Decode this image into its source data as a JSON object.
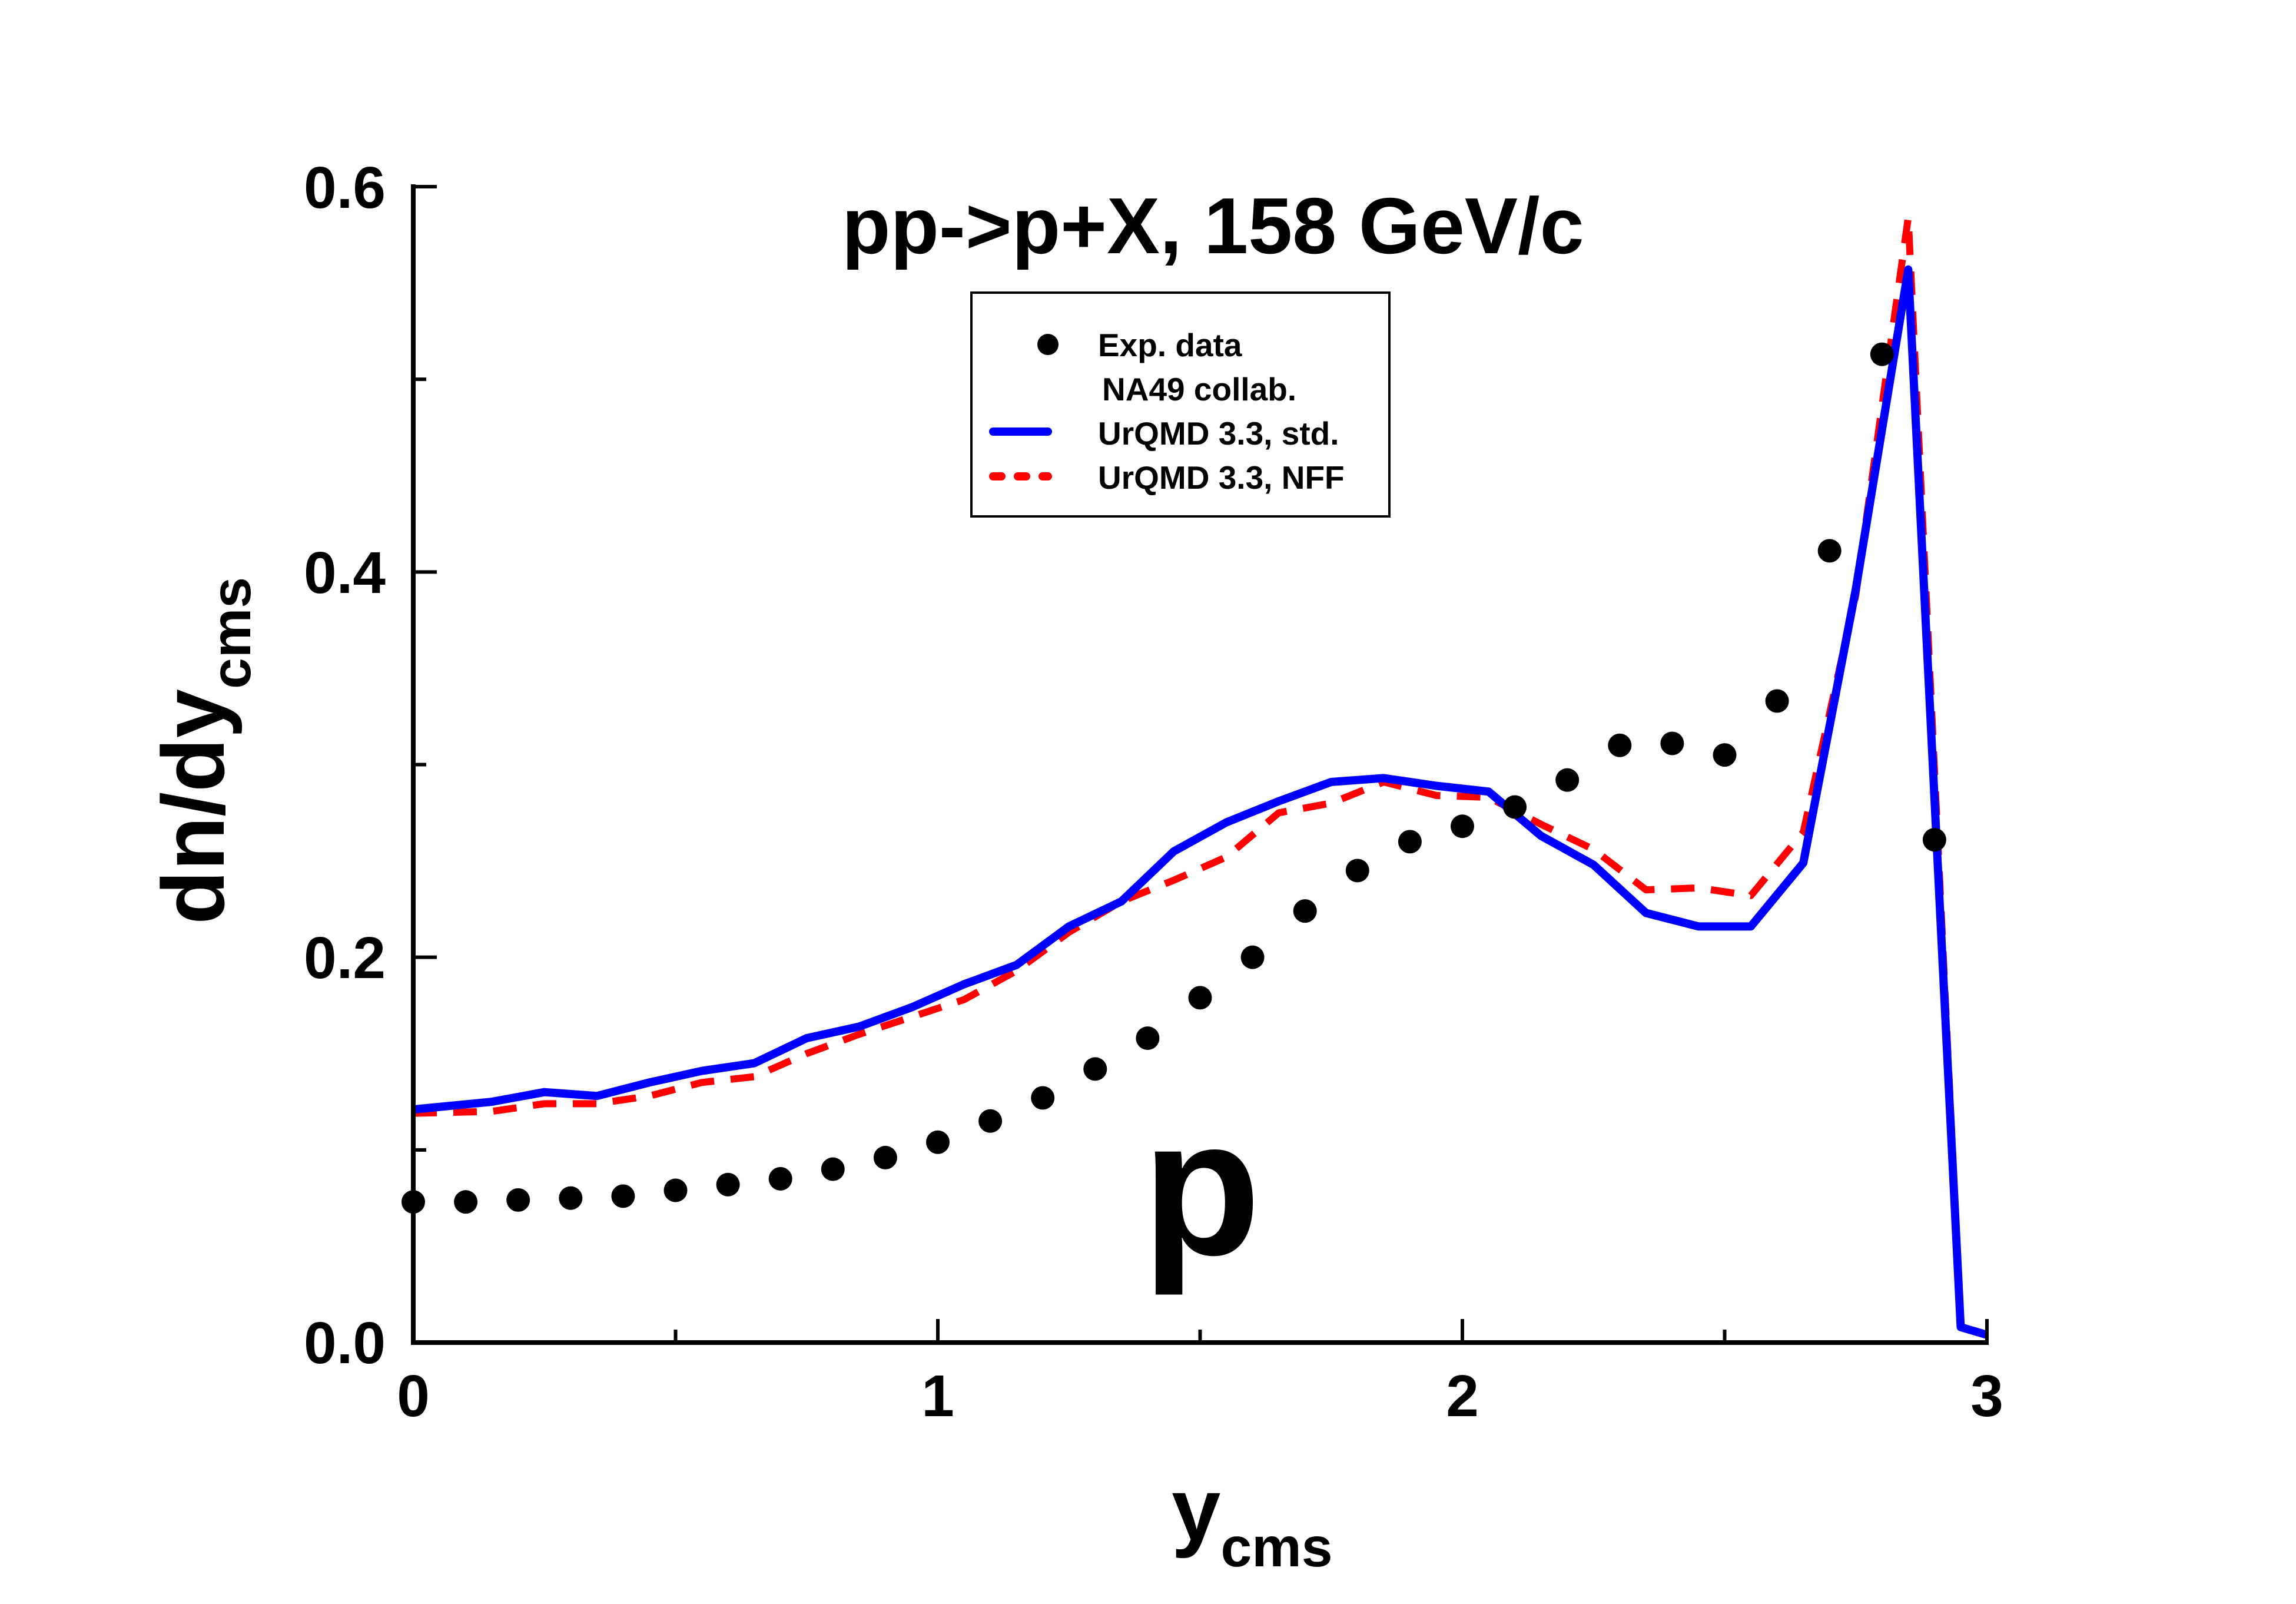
{
  "chart_data": {
    "type": "line",
    "title": "pp->p+X, 158 GeV/c",
    "annotation": "p",
    "xlabel": "y",
    "xlabel_sub": "cms",
    "ylabel": "dn/dy",
    "ylabel_sub": "cms",
    "xlim": [
      0,
      3
    ],
    "ylim": [
      0,
      0.6
    ],
    "xticks": [
      "0",
      "1",
      "2",
      "3"
    ],
    "yticks": [
      "0.0",
      "0.2",
      "0.4",
      "0.6"
    ],
    "grid": false,
    "legend_position": "top-center",
    "series": [
      {
        "name": "Exp. data",
        "name_line2": "NA49 collab.",
        "style": "markers",
        "color": "#000000",
        "x": [
          0,
          0.1,
          0.2,
          0.3,
          0.4,
          0.5,
          0.6,
          0.7,
          0.8,
          0.9,
          1.0,
          1.1,
          1.2,
          1.3,
          1.4,
          1.5,
          1.6,
          1.7,
          1.8,
          1.9,
          2.0,
          2.1,
          2.2,
          2.3,
          2.4,
          2.5,
          2.6,
          2.7,
          2.8,
          2.9
        ],
        "y": [
          0.073,
          0.073,
          0.074,
          0.075,
          0.076,
          0.079,
          0.082,
          0.085,
          0.09,
          0.096,
          0.104,
          0.115,
          0.127,
          0.142,
          0.158,
          0.179,
          0.2,
          0.224,
          0.245,
          0.26,
          0.268,
          0.278,
          0.292,
          0.31,
          0.311,
          0.305,
          0.333,
          0.411,
          0.513,
          0.261
        ]
      },
      {
        "name": "UrQMD 3.3, std.",
        "style": "solid",
        "color": "#0000ff",
        "x": [
          0,
          0.15,
          0.25,
          0.35,
          0.45,
          0.55,
          0.65,
          0.75,
          0.85,
          0.95,
          1.05,
          1.15,
          1.25,
          1.35,
          1.45,
          1.55,
          1.65,
          1.75,
          1.85,
          1.95,
          2.05,
          2.15,
          2.25,
          2.35,
          2.45,
          2.55,
          2.65,
          2.75,
          2.85,
          2.95,
          3.0
        ],
        "y": [
          0.121,
          0.125,
          0.13,
          0.128,
          0.135,
          0.141,
          0.145,
          0.158,
          0.164,
          0.174,
          0.186,
          0.196,
          0.216,
          0.229,
          0.255,
          0.27,
          0.281,
          0.291,
          0.293,
          0.289,
          0.286,
          0.263,
          0.248,
          0.223,
          0.216,
          0.216,
          0.249,
          0.391,
          0.557,
          0.008,
          0.004
        ]
      },
      {
        "name": "UrQMD 3.3, NFF",
        "style": "dashed",
        "color": "#ff0000",
        "x": [
          0,
          0.15,
          0.25,
          0.35,
          0.45,
          0.55,
          0.65,
          0.75,
          0.85,
          0.95,
          1.05,
          1.15,
          1.25,
          1.35,
          1.45,
          1.55,
          1.65,
          1.75,
          1.85,
          1.95,
          2.05,
          2.15,
          2.25,
          2.35,
          2.45,
          2.55,
          2.65,
          2.75,
          2.85,
          2.95
        ],
        "y": [
          0.119,
          0.12,
          0.124,
          0.124,
          0.128,
          0.135,
          0.138,
          0.15,
          0.16,
          0.169,
          0.178,
          0.193,
          0.213,
          0.229,
          0.24,
          0.252,
          0.275,
          0.28,
          0.291,
          0.284,
          0.283,
          0.269,
          0.256,
          0.235,
          0.236,
          0.232,
          0.265,
          0.388,
          0.584,
          0.01
        ]
      }
    ]
  }
}
